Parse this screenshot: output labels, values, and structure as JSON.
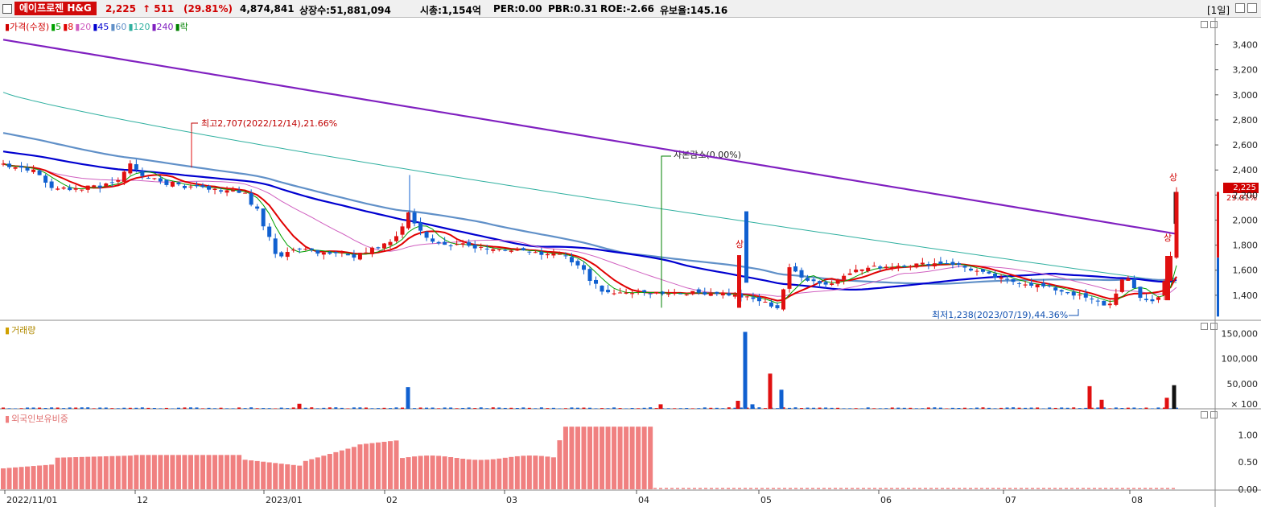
{
  "header": {
    "stock_name": "에이프로젠 H&G",
    "price": "2,225",
    "change": "↑ 511",
    "change_pct": "(29.81%)",
    "volume": "4,874,841",
    "shares": "상장수:51,881,094",
    "market_cap": "시총:1,154억",
    "per": "PER:0.00",
    "pbr": "PBR:0.31",
    "roe": "ROE:-2.66",
    "reserve": "유보율:145.16",
    "period": "[1일]"
  },
  "price_panel": {
    "legend": [
      {
        "label": "가격(수정)",
        "color": "#d00000"
      },
      {
        "label": "5",
        "color": "#00a000"
      },
      {
        "label": "8",
        "color": "#e00000"
      },
      {
        "label": "20",
        "color": "#d060c0"
      },
      {
        "label": "45",
        "color": "#0000d0"
      },
      {
        "label": "60",
        "color": "#6090c8"
      },
      {
        "label": "120",
        "color": "#30b0a0"
      },
      {
        "label": "240",
        "color": "#8020c0"
      },
      {
        "label": "락",
        "color": "#008000"
      }
    ],
    "annotations": {
      "high": "최고2,707(2022/12/14),21.66%",
      "capital": "자본감소(0.00%)",
      "low": "최저1,238(2023/07/19),44.36%",
      "limit_up_1": "상",
      "limit_up_2": "상",
      "limit_up_3": "상"
    },
    "current_price_tag": "2,225",
    "current_pct_tag": "29.81%"
  },
  "volume_panel": {
    "legend": "거래량",
    "unit_label": "× 100"
  },
  "foreign_panel": {
    "legend": "외국인보유비중"
  },
  "colors": {
    "up": "#e01010",
    "down": "#1060d0",
    "ma5": "#00a000",
    "ma8": "#e00000",
    "ma20": "#d060c0",
    "ma45": "#0000d0",
    "ma60": "#6090c8",
    "ma120": "#30b0a0",
    "ma240": "#8020c0",
    "foreign_bar": "#f08080"
  },
  "chart_data": [
    {
      "type": "candlestick",
      "title": "",
      "x": [
        "2022/11/01",
        "12",
        "2023/01",
        "02",
        "03",
        "04",
        "05",
        "06",
        "07",
        "08"
      ],
      "ylim": [
        1200,
        3500
      ],
      "yticks": [
        "1,400",
        "1,600",
        "1,800",
        "2,000",
        "2,200",
        "2,400",
        "2,600",
        "2,800",
        "3,000",
        "3,200",
        "3,400"
      ],
      "price_checkpoints": [
        {
          "date": "2022/11/01",
          "close": 2450
        },
        {
          "date": "2022/12/14",
          "high": 2707
        },
        {
          "date": "2023/01/20",
          "close": 2250
        },
        {
          "date": "2023/01/25",
          "close": 1750
        },
        {
          "date": "2023/02/08",
          "high": 2360
        },
        {
          "date": "2023/02/15",
          "close": 1800
        },
        {
          "date": "2023/03/20",
          "close": 1420
        },
        {
          "date": "2023/04/03",
          "close": 1420
        },
        {
          "date": "2023/04/26",
          "high": 2070
        },
        {
          "date": "2023/05/15",
          "close": 1650
        },
        {
          "date": "2023/06/01",
          "close": 1700
        },
        {
          "date": "2023/07/19",
          "low": 1238
        },
        {
          "date": "2023/08/09",
          "close": 1714
        },
        {
          "date": "2023/08/10",
          "close": 2225
        }
      ],
      "moving_averages": [
        "5",
        "8",
        "20",
        "45",
        "60",
        "120",
        "240"
      ]
    },
    {
      "type": "bar",
      "title": "거래량",
      "ylim": [
        0,
        160000
      ],
      "yticks": [
        "× 100",
        "50,000",
        "100,000",
        "150,000"
      ],
      "spikes": [
        {
          "date": "2023/01/23",
          "value": 10000
        },
        {
          "date": "2023/02/08",
          "value": 43000
        },
        {
          "date": "2023/04/03",
          "value": 9000
        },
        {
          "date": "2023/04/25",
          "value": 16000
        },
        {
          "date": "2023/04/26",
          "value": 153000
        },
        {
          "date": "2023/04/27",
          "value": 9000
        },
        {
          "date": "2023/05/08",
          "value": 70000
        },
        {
          "date": "2023/05/10",
          "value": 38000
        },
        {
          "date": "2023/07/20",
          "value": 45000
        },
        {
          "date": "2023/07/24",
          "value": 18000
        },
        {
          "date": "2023/08/09",
          "value": 22000
        },
        {
          "date": "2023/08/10",
          "value": 47000
        }
      ]
    },
    {
      "type": "bar",
      "title": "외국인보유비중",
      "ylim": [
        0,
        1.3
      ],
      "yticks": [
        "0.00",
        "0.50",
        "1.00"
      ],
      "levels": [
        {
          "from": "2022/11/01",
          "to": "2022/11/20",
          "value": 0.45
        },
        {
          "from": "2022/11/20",
          "to": "2022/12/31",
          "value": 0.62
        },
        {
          "from": "2023/01/01",
          "to": "2023/01/20",
          "value": 0.52
        },
        {
          "from": "2023/01/20",
          "to": "2023/02/08",
          "value": 0.85
        },
        {
          "from": "2023/02/08",
          "to": "2023/03/10",
          "value": 0.62
        },
        {
          "from": "2023/03/10",
          "to": "2023/03/25",
          "value": 0.9
        },
        {
          "from": "2023/03/25",
          "to": "2023/04/03",
          "value": 1.15
        },
        {
          "from": "2023/04/04",
          "to": "2023/08/10",
          "value": 0.0
        }
      ]
    }
  ]
}
